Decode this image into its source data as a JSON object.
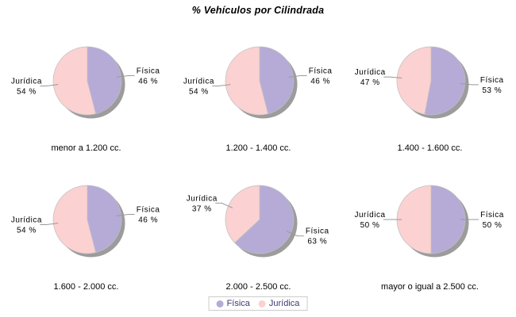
{
  "page": {
    "background": "#FFFFFF"
  },
  "chart_data": {
    "type": "pie",
    "title": "% Vehículos por Cilindrada",
    "unit": "%",
    "series": [
      {
        "name": "Física",
        "color": "#B6ABD6"
      },
      {
        "name": "Jurídica",
        "color": "#FBD1D1"
      }
    ],
    "pies": [
      {
        "category": "menor a 1.200 cc.",
        "values": [
          46,
          54
        ]
      },
      {
        "category": "1.200 - 1.400 cc.",
        "values": [
          46,
          54
        ]
      },
      {
        "category": "1.400 - 1.600 cc.",
        "values": [
          53,
          47
        ]
      },
      {
        "category": "1.600 - 2.000 cc.",
        "values": [
          46,
          54
        ]
      },
      {
        "category": "2.000 - 2.500 cc.",
        "values": [
          63,
          37
        ]
      },
      {
        "category": "mayor o igual a 2.500 cc.",
        "values": [
          50,
          50
        ]
      }
    ],
    "layout": {
      "rows": 2,
      "cols": 3,
      "legend_position": "bottom-center",
      "start_angle_deg": 0,
      "direction": "clockwise",
      "grid": false
    },
    "style": {
      "shadow_color": "#9C9C9C",
      "slice_stroke_color": "#BFBFBF",
      "leader_line_color": "#999999",
      "slice_label_color": "#000000",
      "category_label_color": "#000000",
      "legend_text_color": "#3F3875",
      "legend_border_color": "#CCCCCC"
    }
  }
}
